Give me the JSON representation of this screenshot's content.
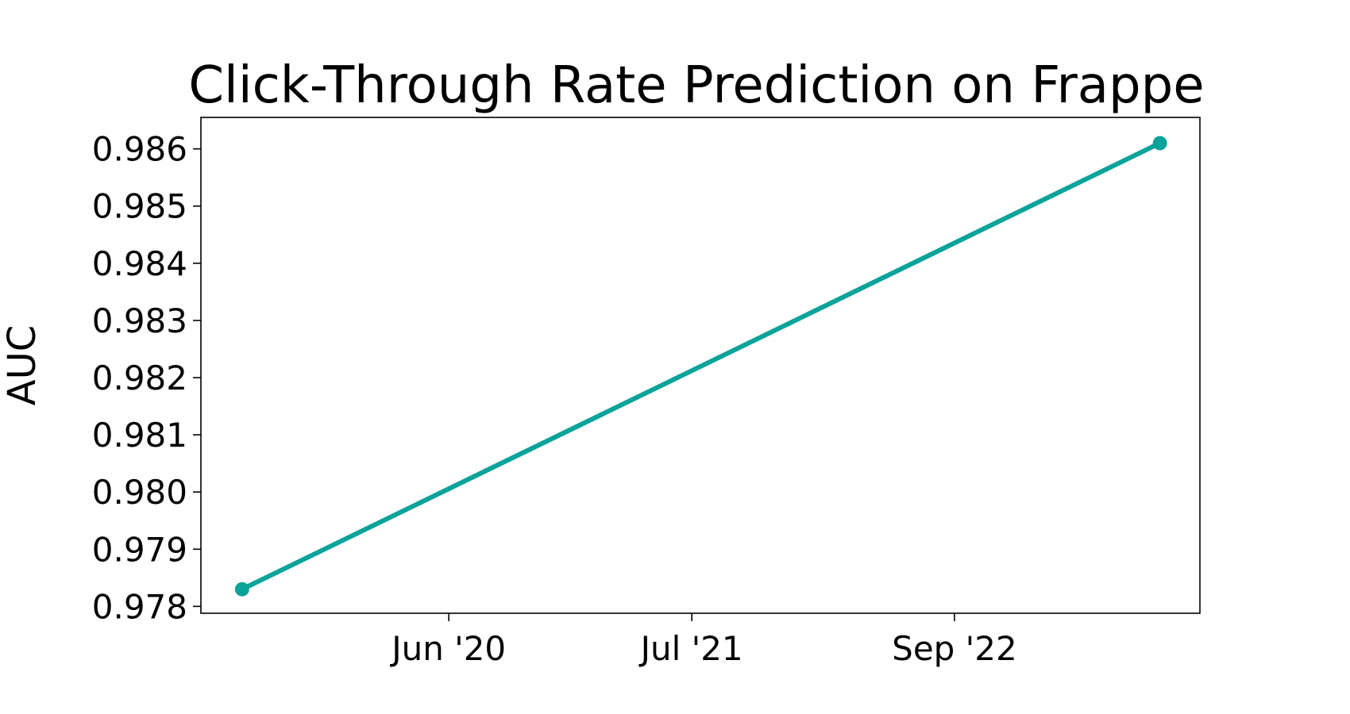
{
  "chart_data": {
    "type": "line",
    "title": "Click-Through Rate Prediction on Frappe",
    "xlabel": "",
    "ylabel": "AUC",
    "x_axis_type": "date",
    "x_ticks": [
      {
        "date": "2020-06-01",
        "label": "Jun '20"
      },
      {
        "date": "2021-07-01",
        "label": "Jul '21"
      },
      {
        "date": "2022-09-01",
        "label": "Sep '22"
      }
    ],
    "xlim": [
      "2019-04-25",
      "2023-10-05"
    ],
    "y_ticks": [
      0.978,
      0.979,
      0.98,
      0.981,
      0.982,
      0.983,
      0.984,
      0.985,
      0.986
    ],
    "y_tick_labels": [
      "0.978",
      "0.979",
      "0.980",
      "0.981",
      "0.982",
      "0.983",
      "0.984",
      "0.985",
      "0.986"
    ],
    "ylim": [
      0.97788,
      0.98655
    ],
    "grid": false,
    "legend": "none",
    "series": [
      {
        "color": "#0aa39a",
        "points": [
          {
            "x": "2019-07-01",
            "y": 0.9783
          },
          {
            "x": "2023-08-01",
            "y": 0.9861
          }
        ]
      }
    ]
  }
}
